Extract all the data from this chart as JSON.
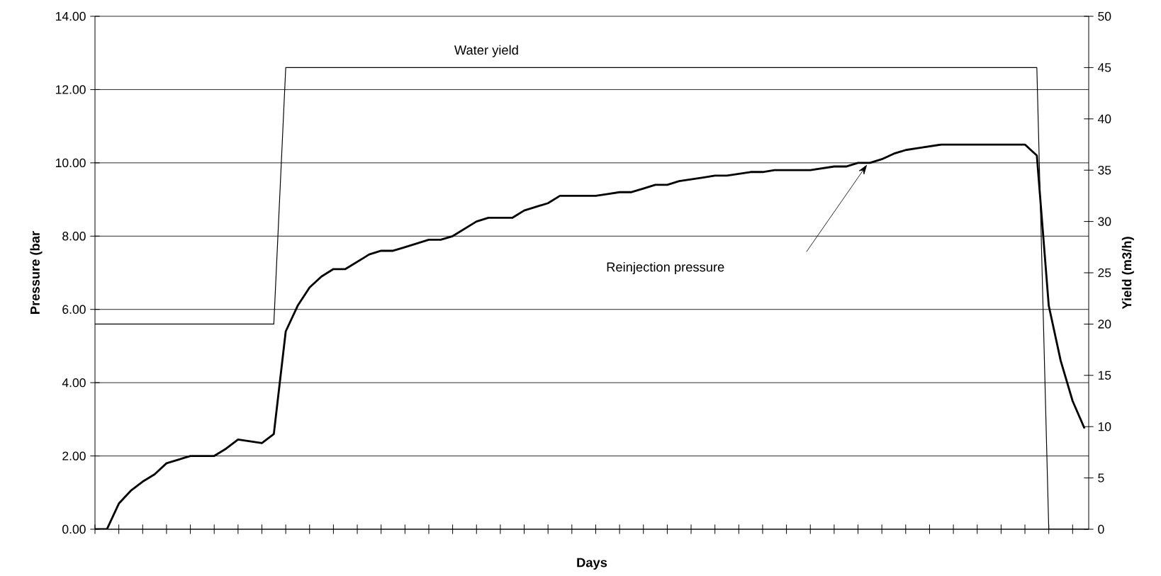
{
  "chart_data": {
    "type": "line",
    "xlabel": "Days",
    "ylabel": "Pressure (bar",
    "y2label": "Yield (m3/h)",
    "categories": [
      null,
      null,
      null,
      null,
      null,
      null,
      null,
      null,
      null,
      null,
      null,
      null,
      null,
      null,
      null,
      null,
      null,
      null,
      null,
      null,
      null,
      null,
      null,
      null,
      null,
      null,
      null,
      null,
      null,
      null,
      null,
      null,
      null,
      null,
      null,
      null,
      null,
      null,
      null,
      null,
      null,
      null,
      null,
      null,
      null,
      null,
      null,
      null,
      null,
      null,
      null,
      null,
      null,
      null,
      null,
      null,
      null,
      null,
      null,
      null,
      null,
      null,
      null,
      null,
      null,
      null,
      null,
      null,
      null,
      null,
      null,
      null,
      null,
      null,
      null,
      null,
      null,
      null,
      null,
      null,
      null,
      null,
      null,
      null
    ],
    "ylim": [
      0,
      14
    ],
    "yticks": [
      {
        "value": 0,
        "label": "0.00"
      },
      {
        "value": 2,
        "label": "2.00"
      },
      {
        "value": 4,
        "label": "4.00"
      },
      {
        "value": 6,
        "label": "6.00"
      },
      {
        "value": 8,
        "label": "8.00"
      },
      {
        "value": 10,
        "label": "10.00"
      },
      {
        "value": 12,
        "label": "12.00"
      },
      {
        "value": 14,
        "label": "14.00"
      }
    ],
    "y2lim": [
      0,
      50
    ],
    "y2ticks": [
      0,
      5,
      10,
      15,
      20,
      25,
      30,
      35,
      40,
      45,
      50
    ],
    "grid": "y",
    "legend": false,
    "annotations": [
      "Reinjection pressure"
    ],
    "series": [
      {
        "color": "#000000",
        "values": [
          0,
          0,
          0.7,
          1.05,
          1.3,
          1.5,
          1.8,
          1.9,
          2.0,
          2.0,
          2.0,
          2.2,
          2.45,
          2.4,
          2.35,
          2.6,
          5.4,
          6.1,
          6.6,
          6.9,
          7.1,
          7.1,
          7.3,
          7.5,
          7.6,
          7.6,
          7.7,
          7.8,
          7.9,
          7.9,
          8.0,
          8.2,
          8.4,
          8.5,
          8.5,
          8.5,
          8.7,
          8.8,
          8.9,
          9.1,
          9.1,
          9.1,
          9.1,
          9.15,
          9.2,
          9.2,
          9.3,
          9.4,
          9.4,
          9.5,
          9.55,
          9.6,
          9.65,
          9.65,
          9.7,
          9.75,
          9.75,
          9.8,
          9.8,
          9.8,
          9.8,
          9.85,
          9.9,
          9.9,
          10.0,
          10.0,
          10.1,
          10.25,
          10.35,
          10.4,
          10.45,
          10.5,
          10.5,
          10.5,
          10.5,
          10.5,
          10.5,
          10.5,
          10.5,
          10.2,
          6.1,
          4.6,
          3.5,
          2.75
        ]
      },
      {
        "name": "Water yield",
        "color": "#000000",
        "axis": "y2",
        "values": [
          20,
          20,
          20,
          20,
          20,
          20,
          20,
          20,
          20,
          20,
          20,
          20,
          20,
          20,
          20,
          20,
          45,
          45,
          45,
          45,
          45,
          45,
          45,
          45,
          45,
          45,
          45,
          45,
          45,
          45,
          45,
          45,
          45,
          45,
          45,
          45,
          45,
          45,
          45,
          45,
          45,
          45,
          45,
          45,
          45,
          45,
          45,
          45,
          45,
          45,
          45,
          45,
          45,
          45,
          45,
          45,
          45,
          45,
          45,
          45,
          45,
          45,
          45,
          45,
          45,
          45,
          45,
          45,
          45,
          45,
          45,
          45,
          45,
          45,
          45,
          45,
          45,
          45,
          45,
          45,
          0,
          0,
          0,
          0
        ]
      }
    ]
  }
}
